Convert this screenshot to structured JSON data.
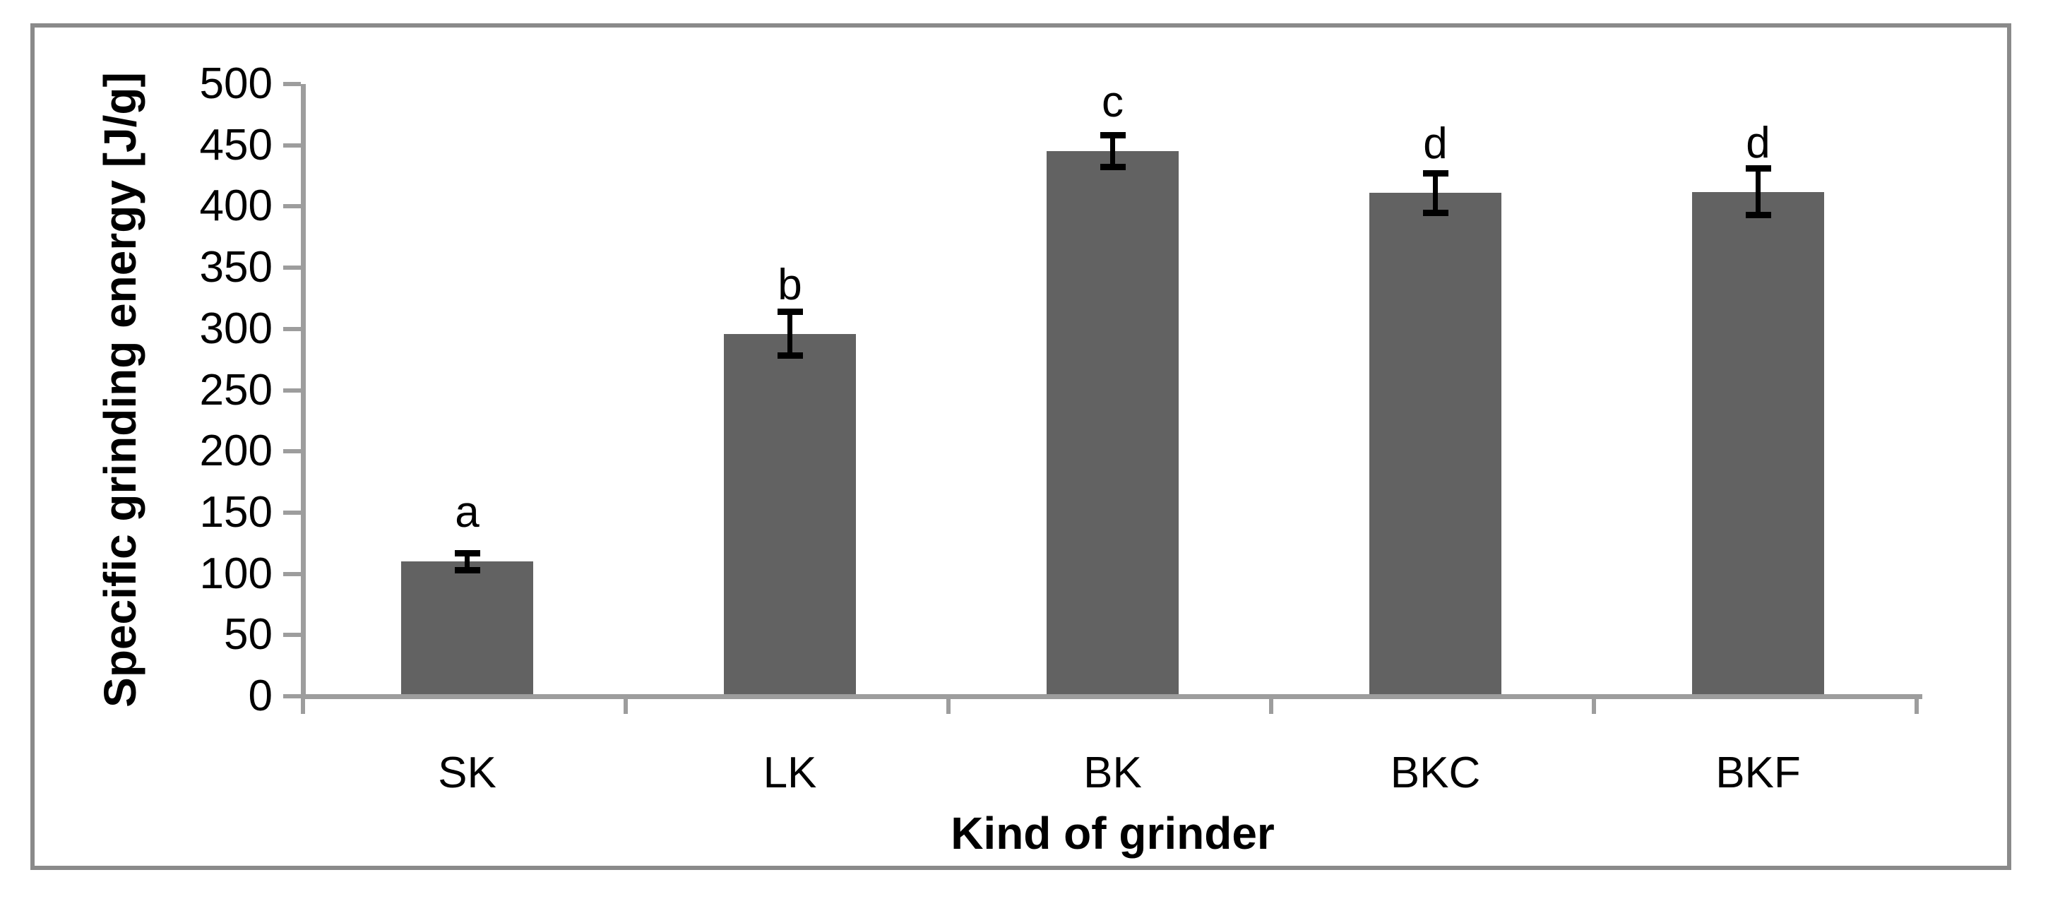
{
  "chart_data": {
    "type": "bar",
    "title": "",
    "categories": [
      "SK",
      "LK",
      "BK",
      "BKC",
      "BKF"
    ],
    "values": [
      110,
      296,
      445,
      411,
      412
    ],
    "error_bars": [
      7,
      18,
      13,
      16,
      19
    ],
    "significance_letters": [
      "a",
      "b",
      "c",
      "d",
      "d"
    ],
    "xlabel": "Kind of grinder",
    "ylabel": "Specific grinding energy [J/g]",
    "ylim": [
      0,
      500
    ],
    "ytick_step": 50,
    "ytick_labels": [
      "0",
      "50",
      "100",
      "150",
      "200",
      "250",
      "300",
      "350",
      "400",
      "450",
      "500"
    ],
    "grid": false,
    "legend": false,
    "bar_color": "#626262",
    "axis_color": "#9d9d9d",
    "error_bar_color": "#000000",
    "text_color": "#000000",
    "frame_border_color": "#8a8a8a"
  }
}
